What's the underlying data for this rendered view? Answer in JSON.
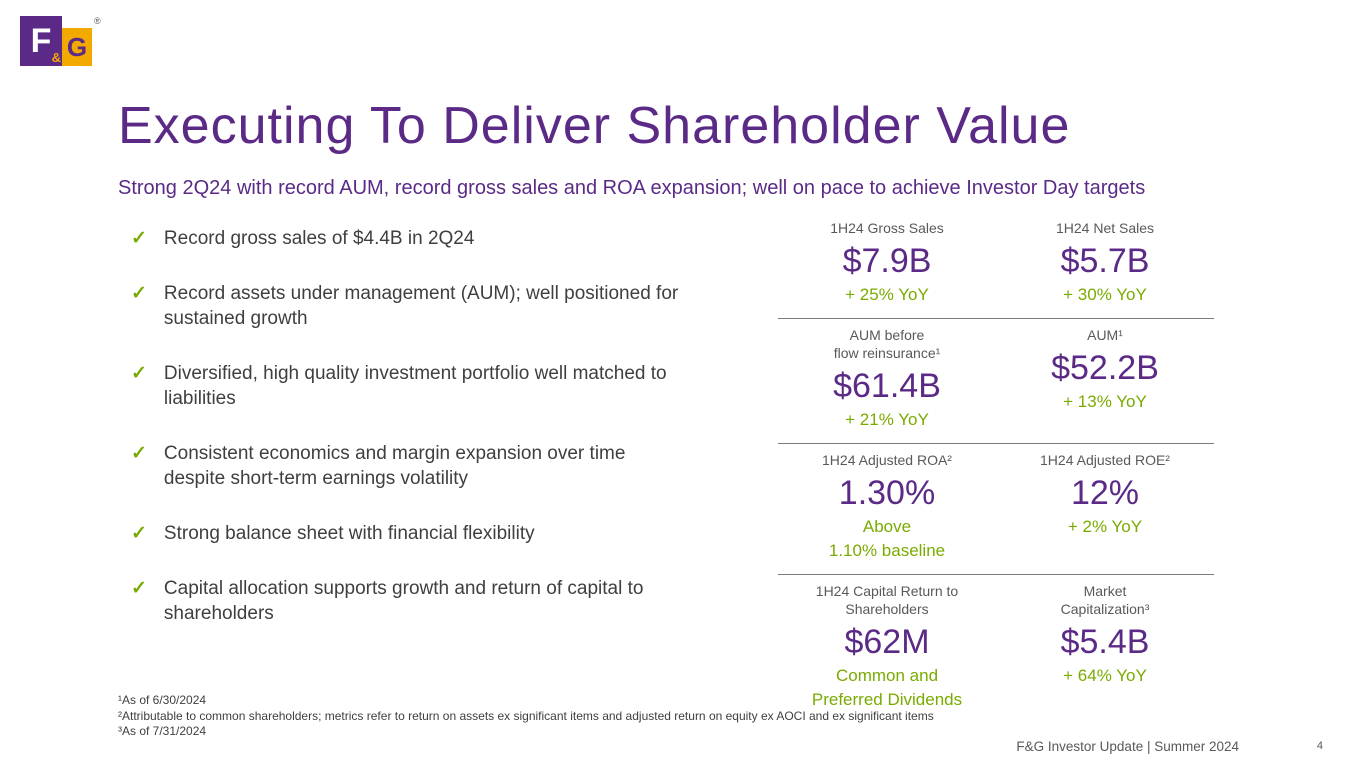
{
  "logo": {
    "f": "F",
    "amp": "&",
    "g": "G",
    "registered": "®"
  },
  "colors": {
    "purple": "#5b2a86",
    "green": "#7aab00",
    "gold": "#f2a900",
    "gray": "#595959"
  },
  "icons": {
    "check": "✓"
  },
  "title": "Executing To Deliver Shareholder Value",
  "subtitle": "Strong 2Q24 with record AUM, record gross sales and ROA expansion; well on pace to achieve Investor Day targets",
  "bullets": [
    "Record gross sales of $4.4B in 2Q24",
    "Record assets under management (AUM); well positioned for sustained growth",
    "Diversified, high quality investment portfolio well matched to liabilities",
    "Consistent economics and margin expansion over time despite short-term earnings volatility",
    "Strong balance sheet with financial flexibility",
    "Capital allocation supports growth and return of capital to shareholders"
  ],
  "metrics": [
    {
      "left": {
        "label": "1H24 Gross Sales",
        "value": "$7.9B",
        "note": "+ 25% YoY"
      },
      "right": {
        "label": "1H24 Net Sales",
        "value": "$5.7B",
        "note": "+ 30% YoY"
      }
    },
    {
      "left": {
        "label": "AUM before\nflow reinsurance¹",
        "value": "$61.4B",
        "note": "+ 21% YoY"
      },
      "right": {
        "label": "AUM¹",
        "value": "$52.2B",
        "note": "+ 13% YoY"
      }
    },
    {
      "left": {
        "label": "1H24 Adjusted ROA²",
        "value": "1.30%",
        "note": "Above\n1.10% baseline"
      },
      "right": {
        "label": "1H24 Adjusted ROE²",
        "value": "12%",
        "note": "+ 2% YoY"
      }
    },
    {
      "left": {
        "label": "1H24 Capital Return to\nShareholders",
        "value": "$62M",
        "note": "Common and\nPreferred Dividends"
      },
      "right": {
        "label": "Market\nCapitalization³",
        "value": "$5.4B",
        "note": "+ 64% YoY"
      }
    }
  ],
  "footnotes": [
    "¹As of 6/30/2024",
    "²Attributable to common shareholders; metrics refer to return on assets ex significant items and adjusted return on equity ex AOCI and ex significant items",
    "³As of 7/31/2024"
  ],
  "footer": {
    "text": "F&G Investor Update | Summer 2024",
    "page": "4"
  }
}
